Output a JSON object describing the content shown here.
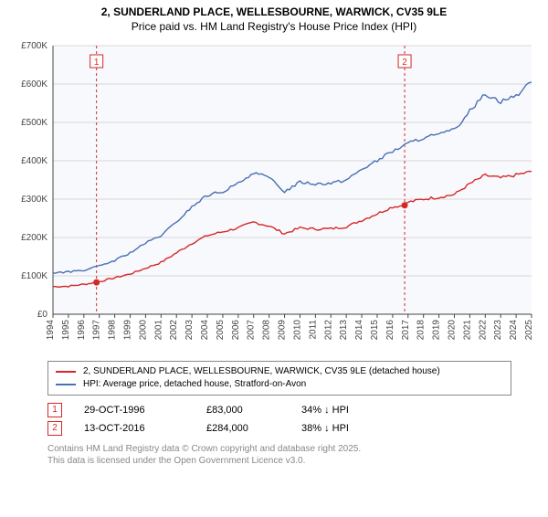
{
  "titles": {
    "main": "2, SUNDERLAND PLACE, WELLESBOURNE, WARWICK, CV35 9LE",
    "sub": "Price paid vs. HM Land Registry's House Price Index (HPI)"
  },
  "chart": {
    "type": "line",
    "background_color": "#ffffff",
    "plot_background_color": "#f7f9fd",
    "grid_color": "#d8d8d8",
    "axis_color": "#444444",
    "axis_label_color": "#444444",
    "axis_fontsize": 10,
    "x": {
      "min": 1994,
      "max": 2025,
      "ticks": [
        1994,
        1995,
        1996,
        1997,
        1998,
        1999,
        2000,
        2001,
        2002,
        2003,
        2004,
        2005,
        2006,
        2007,
        2008,
        2009,
        2010,
        2011,
        2012,
        2013,
        2014,
        2015,
        2016,
        2017,
        2018,
        2019,
        2020,
        2021,
        2022,
        2023,
        2024,
        2025
      ]
    },
    "y": {
      "min": 0,
      "max": 700000,
      "ticks": [
        0,
        100000,
        200000,
        300000,
        400000,
        500000,
        600000,
        700000
      ],
      "tick_labels": [
        "£0",
        "£100K",
        "£200K",
        "£300K",
        "£400K",
        "£500K",
        "£600K",
        "£700K"
      ]
    },
    "series": [
      {
        "name": "subject",
        "label": "2, SUNDERLAND PLACE, WELLESBOURNE, WARWICK, CV35 9LE (detached house)",
        "color": "#d62728",
        "line_width": 1.4,
        "data": [
          [
            1994,
            72000
          ],
          [
            1995,
            73000
          ],
          [
            1996,
            78000
          ],
          [
            1996.8,
            83000
          ],
          [
            1997,
            85000
          ],
          [
            1998,
            95000
          ],
          [
            1999,
            105000
          ],
          [
            2000,
            120000
          ],
          [
            2001,
            135000
          ],
          [
            2002,
            160000
          ],
          [
            2003,
            185000
          ],
          [
            2004,
            205000
          ],
          [
            2005,
            215000
          ],
          [
            2006,
            225000
          ],
          [
            2007,
            240000
          ],
          [
            2008,
            230000
          ],
          [
            2009,
            210000
          ],
          [
            2010,
            225000
          ],
          [
            2011,
            222000
          ],
          [
            2012,
            223000
          ],
          [
            2013,
            228000
          ],
          [
            2014,
            245000
          ],
          [
            2015,
            262000
          ],
          [
            2016,
            280000
          ],
          [
            2016.78,
            284000
          ],
          [
            2017,
            292000
          ],
          [
            2018,
            300000
          ],
          [
            2019,
            305000
          ],
          [
            2020,
            312000
          ],
          [
            2021,
            340000
          ],
          [
            2022,
            362000
          ],
          [
            2023,
            355000
          ],
          [
            2024,
            363000
          ],
          [
            2025,
            372000
          ]
        ]
      },
      {
        "name": "hpi",
        "label": "HPI: Average price, detached house, Stratford-on-Avon",
        "color": "#4a6fb3",
        "line_width": 1.4,
        "data": [
          [
            1994,
            108000
          ],
          [
            1995,
            110000
          ],
          [
            1996,
            115000
          ],
          [
            1997,
            125000
          ],
          [
            1998,
            140000
          ],
          [
            1999,
            160000
          ],
          [
            2000,
            185000
          ],
          [
            2001,
            205000
          ],
          [
            2002,
            240000
          ],
          [
            2003,
            280000
          ],
          [
            2004,
            310000
          ],
          [
            2005,
            320000
          ],
          [
            2006,
            340000
          ],
          [
            2007,
            370000
          ],
          [
            2008,
            355000
          ],
          [
            2009,
            320000
          ],
          [
            2010,
            345000
          ],
          [
            2011,
            340000
          ],
          [
            2012,
            342000
          ],
          [
            2013,
            350000
          ],
          [
            2014,
            378000
          ],
          [
            2015,
            400000
          ],
          [
            2016,
            425000
          ],
          [
            2017,
            445000
          ],
          [
            2018,
            460000
          ],
          [
            2019,
            468000
          ],
          [
            2020,
            480000
          ],
          [
            2021,
            530000
          ],
          [
            2022,
            575000
          ],
          [
            2023,
            555000
          ],
          [
            2024,
            570000
          ],
          [
            2025,
            605000
          ]
        ]
      }
    ],
    "markers": [
      {
        "id": "1",
        "x": 1996.82,
        "y": 83000,
        "color": "#d62728",
        "line_dash": "3,3",
        "date": "29-OCT-1996",
        "price": "£83,000",
        "pct": "34%",
        "arrow": "↓",
        "vs": "HPI"
      },
      {
        "id": "2",
        "x": 2016.78,
        "y": 284000,
        "color": "#d62728",
        "line_dash": "3,3",
        "date": "13-OCT-2016",
        "price": "£284,000",
        "pct": "38%",
        "arrow": "↓",
        "vs": "HPI"
      }
    ],
    "marker_box": {
      "border_color": "#d62728",
      "text_color": "#d62728",
      "fill": "#ffffff"
    }
  },
  "legend": {
    "border_color": "#888888",
    "fontsize": 10
  },
  "footer": {
    "line1": "Contains HM Land Registry data © Crown copyright and database right 2025.",
    "line2": "This data is licensed under the Open Government Licence v3.0.",
    "color": "#888888",
    "fontsize": 10
  }
}
